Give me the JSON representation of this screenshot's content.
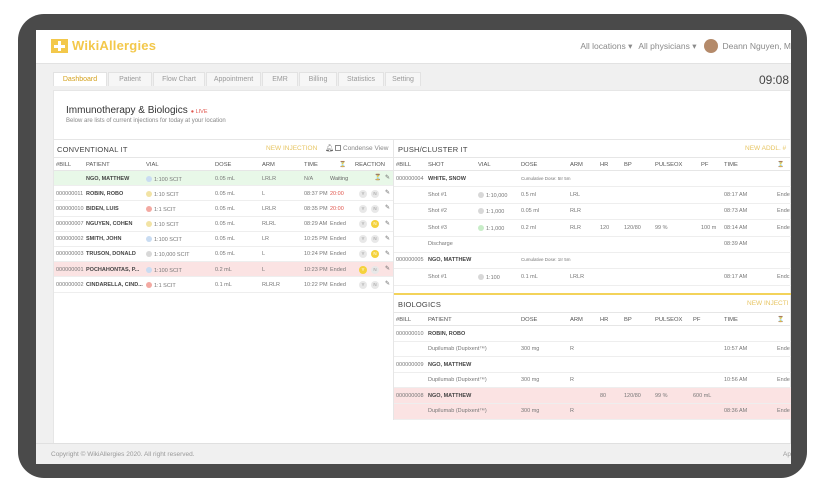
{
  "app": {
    "name": "WikiAllergies"
  },
  "header": {
    "locations": "All locations",
    "physicians": "All physicians",
    "user": "Deann Nguyen, M"
  },
  "tabs": [
    "Dashboard",
    "Patient",
    "Flow Chart",
    "Appointment",
    "EMR",
    "Billing",
    "Statistics",
    "Setting"
  ],
  "active_tab": "Dashboard",
  "clock": "09:08",
  "page": {
    "title": "Immunotherapy & Biologics",
    "live": "LIVE",
    "subtitle": "Below are lists of current injections for today at your location"
  },
  "conventional": {
    "title": "CONVENTIONAL IT",
    "new_link": "NEW INJECTION",
    "condense": "Condense View",
    "columns": [
      "#BILL",
      "PATIENT",
      "VIAL",
      "DOSE",
      "ARM",
      "TIME",
      "",
      "REACTION"
    ],
    "rows": [
      {
        "bill": "",
        "patient": "NGO, MATTHEW",
        "vial": "1:100 SCIT",
        "dot": "#c9dcf2",
        "dose": "0.05 mL",
        "arm": "LRLR",
        "time": "N/A",
        "status": "Waiting",
        "hl": "green"
      },
      {
        "bill": "000000011",
        "patient": "ROBIN, ROBO",
        "vial": "1:10 SCIT",
        "dot": "#f2e3a4",
        "dose": "0.05 mL",
        "arm": "L",
        "time": "08:37 PM",
        "status": "20:00",
        "hl": ""
      },
      {
        "bill": "000000010",
        "patient": "BIDEN, LUIS",
        "vial": "1:1 SCIT",
        "dot": "#f3a9a2",
        "dose": "0.05 mL",
        "arm": "LRLR",
        "time": "08:35 PM",
        "status": "20:00",
        "hl": ""
      },
      {
        "bill": "000000007",
        "patient": "NGUYEN, COHEN",
        "vial": "1:10 SCIT",
        "dot": "#f2e3a4",
        "dose": "0.05 mL",
        "arm": "RLRL",
        "time": "08:29 AM",
        "status": "Ended",
        "hl": ""
      },
      {
        "bill": "000000002",
        "patient": "SMITH, JOHN",
        "vial": "1:100 SCIT",
        "dot": "#c9dcf2",
        "dose": "0.05 mL",
        "arm": "LR",
        "time": "10:25 PM",
        "status": "Ended",
        "hl": ""
      },
      {
        "bill": "000000003",
        "patient": "TRUSON, DONALD",
        "vial": "1:10,000 SCIT",
        "dot": "#d8d8d8",
        "dose": "0.05 mL",
        "arm": "L",
        "time": "10:24 PM",
        "status": "Ended",
        "hl": ""
      },
      {
        "bill": "000000001",
        "patient": "POCHAHONTAS, P...",
        "vial": "1:100 SCIT",
        "dot": "#c9dcf2",
        "dose": "0.2 mL",
        "arm": "L",
        "time": "10:23 PM",
        "status": "Ended",
        "hl": "red"
      },
      {
        "bill": "000000002",
        "patient": "CINDARELLA, CIND...",
        "vial": "1:1 SCIT",
        "dot": "#f3a9a2",
        "dose": "0.1 mL",
        "arm": "RLRLR",
        "time": "10:22 PM",
        "status": "Ended",
        "hl": ""
      }
    ]
  },
  "push": {
    "title": "PUSH/CLUSTER IT",
    "new_link": "NEW ADDL. #",
    "columns": [
      "#BILL",
      "SHOT",
      "VIAL",
      "DOSE",
      "ARM",
      "HR",
      "BP",
      "PULSEOX",
      "PF",
      "TIME",
      ""
    ],
    "rows": [
      {
        "bill": "000000004",
        "shot": "WHITE, SNOW",
        "vial": "",
        "dot": "",
        "dose": "Cumulative Dose: 5Ir 5m",
        "arm": "",
        "hr": "",
        "bp": "",
        "pulse": "",
        "pf": "",
        "time": "",
        "end": "",
        "type": "group"
      },
      {
        "bill": "",
        "shot": "Shot #1",
        "vial": "1:10,000",
        "dot": "#d8d8d8",
        "dose": "0.5 ml",
        "arm": "LRL",
        "hr": "",
        "bp": "",
        "pulse": "",
        "pf": "",
        "time": "08:17 AM",
        "end": "Ende",
        "type": "shot"
      },
      {
        "bill": "",
        "shot": "Shot #2",
        "vial": "1:1,000",
        "dot": "#d8d8d8",
        "dose": "0.05 ml",
        "arm": "RLR",
        "hr": "",
        "bp": "",
        "pulse": "",
        "pf": "",
        "time": "08:73 AM",
        "end": "Ende",
        "type": "shot"
      },
      {
        "bill": "",
        "shot": "Shot #3",
        "vial": "1:1,000",
        "dot": "#c8edc8",
        "dose": "0.2 ml",
        "arm": "RLR",
        "hr": "120",
        "bp": "120/80",
        "pulse": "99 %",
        "pf": "100 m",
        "time": "08:14 AM",
        "end": "Ende",
        "type": "shot"
      },
      {
        "bill": "",
        "shot": "Discharge",
        "vial": "",
        "dot": "",
        "dose": "",
        "arm": "",
        "hr": "",
        "bp": "",
        "pulse": "",
        "pf": "",
        "time": "08:39 AM",
        "end": "",
        "type": "shot"
      },
      {
        "bill": "000000005",
        "shot": "NGO, MATTHEW",
        "vial": "",
        "dot": "",
        "dose": "Cumulative Dose: 1Ir 5m",
        "arm": "",
        "hr": "",
        "bp": "",
        "pulse": "",
        "pf": "",
        "time": "",
        "end": "",
        "type": "group"
      },
      {
        "bill": "",
        "shot": "Shot #1",
        "vial": "1:100",
        "dot": "#d8d8d8",
        "dose": "0.1 mL",
        "arm": "LRLR",
        "hr": "",
        "bp": "",
        "pulse": "",
        "pf": "",
        "time": "08:17 AM",
        "end": "Endc",
        "type": "shot"
      }
    ]
  },
  "biologics": {
    "title": "BIOLOGICS",
    "new_link": "NEW INJECTI",
    "columns": [
      "#BILL",
      "PATIENT",
      "DOSE",
      "ARM",
      "HR",
      "BP",
      "PULSEOX",
      "PF",
      "TIME",
      ""
    ],
    "rows": [
      {
        "bill": "000000010",
        "patient": "ROBIN, ROBO",
        "dose": "",
        "arm": "",
        "hr": "",
        "bp": "",
        "pulse": "",
        "pf": "",
        "time": "",
        "end": "",
        "type": "group",
        "hl": ""
      },
      {
        "bill": "",
        "patient": "Dupilumab (Dupixent™)",
        "dose": "300 mg",
        "arm": "R",
        "hr": "",
        "bp": "",
        "pulse": "",
        "pf": "",
        "time": "10:57 AM",
        "end": "Ende",
        "type": "item",
        "hl": ""
      },
      {
        "bill": "000000009",
        "patient": "NGO, MATTHEW",
        "dose": "",
        "arm": "",
        "hr": "",
        "bp": "",
        "pulse": "",
        "pf": "",
        "time": "",
        "end": "",
        "type": "group",
        "hl": ""
      },
      {
        "bill": "",
        "patient": "Dupilumab (Dupixent™)",
        "dose": "300 mg",
        "arm": "R",
        "hr": "",
        "bp": "",
        "pulse": "",
        "pf": "",
        "time": "10:56 AM",
        "end": "Ende",
        "type": "item",
        "hl": ""
      },
      {
        "bill": "000000008",
        "patient": "NGO, MATTHEW",
        "dose": "",
        "arm": "",
        "hr": "80",
        "bp": "120/80",
        "pulse": "99 %",
        "pf": "600 mL",
        "time": "",
        "end": "",
        "type": "group",
        "hl": "red"
      },
      {
        "bill": "",
        "patient": "Dupilumab (Dupixent™)",
        "dose": "300 mg",
        "arm": "R",
        "hr": "",
        "bp": "",
        "pulse": "",
        "pf": "",
        "time": "08:36 AM",
        "end": "Ende",
        "type": "item",
        "hl": "red"
      }
    ]
  },
  "footer": {
    "copyright": "Copyright © WikiAllergies 2020. All right reserved.",
    "right": "Ap"
  }
}
